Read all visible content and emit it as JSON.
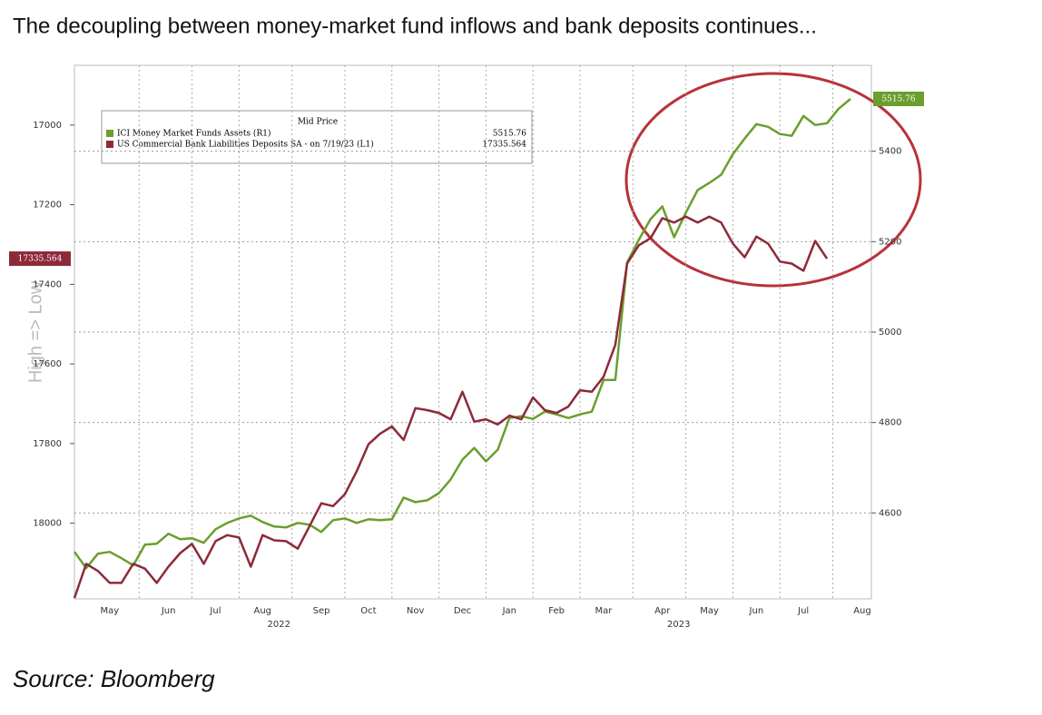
{
  "chart_data": {
    "type": "line",
    "title": "The decoupling between money-market fund inflows and bank deposits continues...",
    "source": "Source: Bloomberg",
    "ylabel": "High => Low",
    "legend_title": "Mid Price",
    "ylim": [
      16850,
      18190
    ],
    "y_inverted": true,
    "yticks": [
      17000,
      17200,
      17400,
      17600,
      17800,
      18000
    ],
    "y2lim": [
      4410,
      5590
    ],
    "y2ticks": [
      4600,
      4800,
      5000,
      5200,
      5400
    ],
    "grid": true,
    "legend": "upper left",
    "year_labels": [
      "2022",
      "2023"
    ],
    "categories": [
      null,
      null,
      null,
      "May",
      null,
      null,
      null,
      null,
      "Jun",
      null,
      null,
      null,
      "Jul",
      null,
      null,
      null,
      "Aug",
      null,
      null,
      null,
      null,
      "Sep",
      null,
      null,
      null,
      "Oct",
      null,
      null,
      null,
      "Nov",
      null,
      null,
      null,
      "Dec",
      null,
      null,
      null,
      "Jan",
      null,
      null,
      null,
      "Feb",
      null,
      null,
      null,
      "Mar",
      null,
      null,
      null,
      null,
      "Apr",
      null,
      null,
      null,
      "May",
      null,
      null,
      null,
      "Jun",
      null,
      null,
      null,
      "Jul",
      null,
      null,
      null,
      null,
      "Aug"
    ],
    "series": [
      {
        "name": "ICI Money Market Funds Assets (R1)",
        "color": "#6a9e2e",
        "axis": "y2",
        "values": [
          4514,
          4478,
          4510,
          4514,
          4500,
          4484,
          4530,
          4532,
          4554,
          4542,
          4544,
          4534,
          4564,
          4578,
          4588,
          4594,
          4580,
          4570,
          4568,
          4578,
          4574,
          4558,
          4584,
          4588,
          4578,
          4586,
          4584,
          4586,
          4634,
          4624,
          4628,
          4644,
          4674,
          4718,
          4744,
          4714,
          4740,
          4810,
          4814,
          4808,
          4824,
          4818,
          4810,
          4818,
          4824,
          4894,
          4894,
          5154,
          5204,
          5250,
          5278,
          5210,
          5264,
          5314,
          5330,
          5348,
          5394,
          5428,
          5460,
          5454,
          5438,
          5434,
          5478,
          5458,
          5462,
          5494,
          5515.76,
          null
        ]
      },
      {
        "name": "US Commercial Bank Liabilities Deposits SA - on 7/19/23 (L1)",
        "color": "#8c2a3a",
        "axis": "y",
        "values": [
          18188,
          18102,
          18120,
          18150,
          18150,
          18102,
          18114,
          18150,
          18109,
          18075,
          18052,
          18102,
          18045,
          18030,
          18036,
          18109,
          18030,
          18043,
          18045,
          18064,
          18007,
          17950,
          17957,
          17927,
          17870,
          17802,
          17775,
          17757,
          17791,
          17711,
          17716,
          17723,
          17739,
          17670,
          17745,
          17739,
          17752,
          17730,
          17739,
          17684,
          17716,
          17723,
          17707,
          17666,
          17670,
          17632,
          17552,
          17348,
          17302,
          17284,
          17234,
          17245,
          17230,
          17245,
          17230,
          17245,
          17298,
          17332,
          17280,
          17298,
          17343,
          17348,
          17366,
          17291,
          17335.564,
          null,
          null,
          null
        ]
      }
    ]
  }
}
